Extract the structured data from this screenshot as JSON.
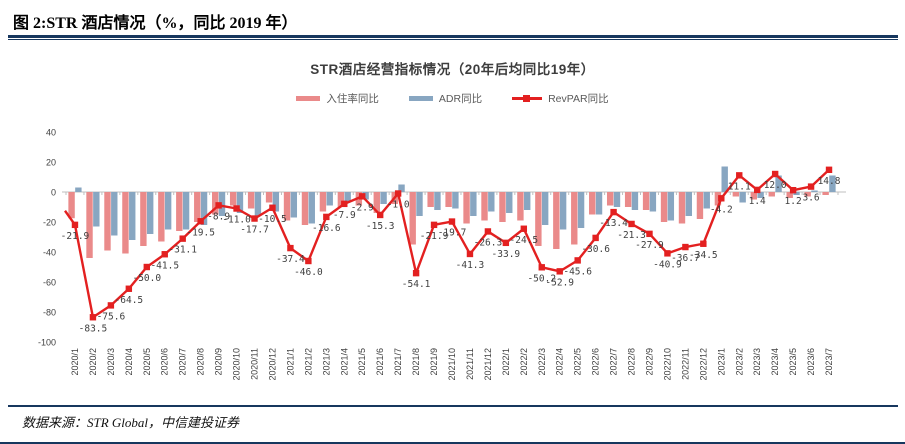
{
  "page": {
    "header_title": "图 2:STR 酒店情况（%，同比 2019 年）",
    "footer_source": "数据来源：STR Global，中信建投证券",
    "accent_navy": "#17375E"
  },
  "chart_data": {
    "type": "bar+line",
    "title": "STR酒店经营指标情况（20年后均同比19年）",
    "legend_position": "top",
    "grid": false,
    "ylim": [
      -100,
      40
    ],
    "yticks": [
      40,
      20,
      0,
      -20,
      -40,
      -60,
      -80,
      -100
    ],
    "categories": [
      "2020/1",
      "2020/2",
      "2020/3",
      "2020/4",
      "2020/5",
      "2020/6",
      "2020/7",
      "2020/8",
      "2020/9",
      "2020/10",
      "2020/11",
      "2020/12",
      "2021/1",
      "2021/2",
      "2021/3",
      "2021/4",
      "2021/5",
      "2021/6",
      "2021/7",
      "2021/8",
      "2021/9",
      "2021/10",
      "2021/11",
      "2021/12",
      "2022/1",
      "2022/2",
      "2022/3",
      "2022/4",
      "2022/5",
      "2022/6",
      "2022/7",
      "2022/8",
      "2022/9",
      "2022/10",
      "2022/11",
      "2022/12",
      "2023/1",
      "2023/2",
      "2023/3",
      "2023/4",
      "2023/5",
      "2023/6",
      "2023/7"
    ],
    "series": [
      {
        "name": "入住率同比",
        "type": "bar",
        "color": "#EA8A8A",
        "values": [
          -17.5,
          -44,
          -39,
          -41,
          -36,
          -33,
          -26,
          -20,
          -15,
          -9,
          -11,
          -7,
          -19,
          -22,
          -13,
          -10,
          -9,
          -14,
          -8,
          -35,
          -10,
          -10,
          -21,
          -19,
          -20,
          -19,
          -36,
          -38,
          -35,
          -15,
          -9,
          -10,
          -12,
          -20,
          -21,
          -18,
          -9,
          -3,
          -5,
          -3,
          -4,
          -3,
          -2
        ]
      },
      {
        "name": "ADR同比",
        "type": "bar",
        "color": "#88A6C1",
        "values": [
          3,
          -23,
          -29,
          -32,
          -28,
          -25,
          -25,
          -22,
          -16,
          -14,
          -16,
          -13,
          -17,
          -21,
          -9,
          -6,
          -5,
          -8,
          5,
          -16,
          -12,
          -11,
          -16,
          -13,
          -14,
          -12,
          -22,
          -25,
          -24,
          -15,
          -10,
          -12,
          -13,
          -19,
          -16,
          -11,
          17,
          -7,
          -4,
          11,
          -2,
          1,
          11
        ]
      },
      {
        "name": "RevPAR同比",
        "type": "line",
        "color": "#E32020",
        "show_labels": true,
        "lead_in_value": -12.5,
        "values": [
          -21.9,
          -83.5,
          -75.6,
          -64.5,
          -50.0,
          -41.5,
          -31.1,
          -19.5,
          -8.9,
          -11.0,
          -17.7,
          -10.5,
          -37.4,
          -46.0,
          -16.6,
          -7.9,
          -2.9,
          -15.3,
          -1.0,
          -54.1,
          -21.9,
          -19.7,
          -41.3,
          -26.3,
          -33.9,
          -24.5,
          -50.2,
          -52.9,
          -45.6,
          -30.6,
          -13.4,
          -21.3,
          -27.9,
          -40.9,
          -36.7,
          -34.5,
          -4.2,
          11.1,
          1.4,
          12.0,
          1.2,
          3.6,
          14.8
        ]
      }
    ]
  }
}
